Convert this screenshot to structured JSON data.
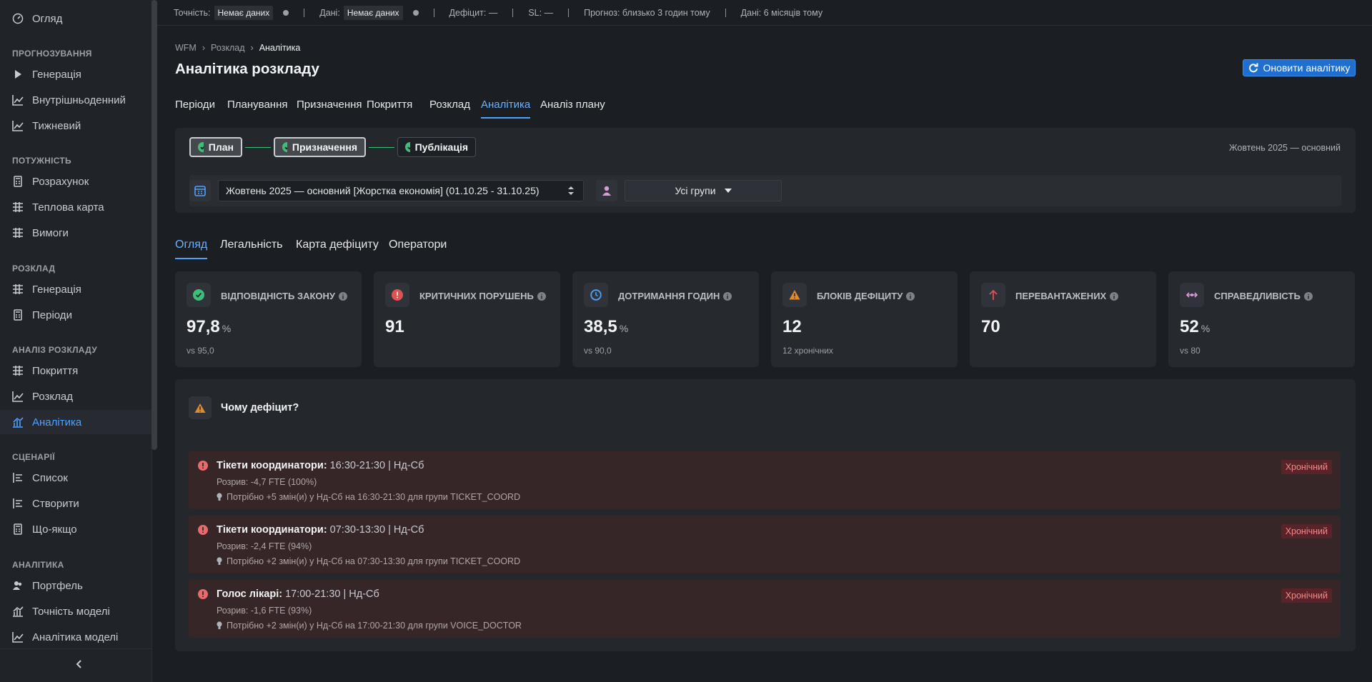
{
  "sidebar": {
    "top_item": "Огляд",
    "sections": [
      {
        "title": "ПРОГНОЗУВАННЯ",
        "items": [
          "Генерація",
          "Внутрішньоденний",
          "Тижневий"
        ]
      },
      {
        "title": "ПОТУЖНІСТЬ",
        "items": [
          "Розрахунок",
          "Теплова карта",
          "Вимоги"
        ]
      },
      {
        "title": "РОЗКЛАД",
        "items": [
          "Генерація",
          "Періоди"
        ]
      },
      {
        "title": "АНАЛІЗ РОЗКЛАДУ",
        "items": [
          "Покриття",
          "Розклад",
          "Аналітика"
        ]
      },
      {
        "title": "СЦЕНАРІЇ",
        "items": [
          "Список",
          "Створити",
          "Що-якщо"
        ]
      },
      {
        "title": "АНАЛІТИКА",
        "items": [
          "Портфель",
          "Точність моделі",
          "Аналітика моделі"
        ]
      }
    ]
  },
  "status_bar": [
    {
      "label": "Точність:",
      "badge": "Немає даних"
    },
    {
      "label": "Дані:",
      "badge": "Немає даних"
    },
    {
      "label": "Дефіцит: —"
    },
    {
      "label": "SL: —"
    },
    {
      "label": "Прогноз: близько 3 годин тому"
    },
    {
      "label": "Дані: 6 місяців тому"
    }
  ],
  "breadcrumb": [
    "WFM",
    "Розклад",
    "Аналітика"
  ],
  "header": {
    "title": "Аналітика розкладу",
    "button": "Оновити аналітику"
  },
  "tabs": [
    "Періоди",
    "Планування",
    "Призначення",
    "Покриття",
    "Розклад",
    "Аналітика",
    "Аналіз плану"
  ],
  "stepper": [
    "План",
    "Призначення",
    "Публікація"
  ],
  "period_label": "Жовтень 2025 — основний",
  "period_select": "Жовтень 2025 — основний [Жорстка економія] (01.10.25 - 31.10.25)",
  "group_select": "Усі групи",
  "subtabs": [
    "Огляд",
    "Легальність",
    "Карта дефіциту",
    "Оператори"
  ],
  "cards": [
    {
      "title": "ВІДПОВІДНІСТЬ ЗАКОНУ",
      "value": "97,8",
      "unit": "%",
      "note": "vs 95,0"
    },
    {
      "title": "КРИТИЧНИХ ПОРУШЕНЬ",
      "value": "91"
    },
    {
      "title": "ДОТРИМАННЯ ГОДИН",
      "value": "38,5",
      "unit": "%",
      "note": "vs 90,0"
    },
    {
      "title": "БЛОКІВ ДЕФІЦИТУ",
      "value": "12",
      "note": "12 хронічних"
    },
    {
      "title": "ПЕРЕВАНТАЖЕНИХ",
      "value": "70"
    },
    {
      "title": "СПРАВЕДЛИВІСТЬ",
      "value": "52",
      "unit": "%",
      "note": "vs 80"
    }
  ],
  "deficit": {
    "title": "Чому дефіцит?",
    "items": [
      {
        "group": "Тікети координатори:",
        "detail": "16:30-21:30 | Нд-Сб",
        "gap": "Розрив: -4,7 FTE (100%)",
        "hint": "Потрібно +5 змін(и) у Нд-Сб на 16:30-21:30 для групи TICKET_COORD",
        "badge": "Хронічний"
      },
      {
        "group": "Тікети координатори:",
        "detail": "07:30-13:30 | Нд-Сб",
        "gap": "Розрив: -2,4 FTE (94%)",
        "hint": "Потрібно +2 змін(и) у Нд-Сб на 07:30-13:30 для групи TICKET_COORD",
        "badge": "Хронічний"
      },
      {
        "group": "Голос лікарі:",
        "detail": "17:00-21:30 | Нд-Сб",
        "gap": "Розрив: -1,6 FTE (93%)",
        "hint": "Потрібно +2 змін(и) у Нд-Сб на 17:00-21:30 для групи VOICE_DOCTOR",
        "badge": "Хронічний"
      }
    ]
  }
}
